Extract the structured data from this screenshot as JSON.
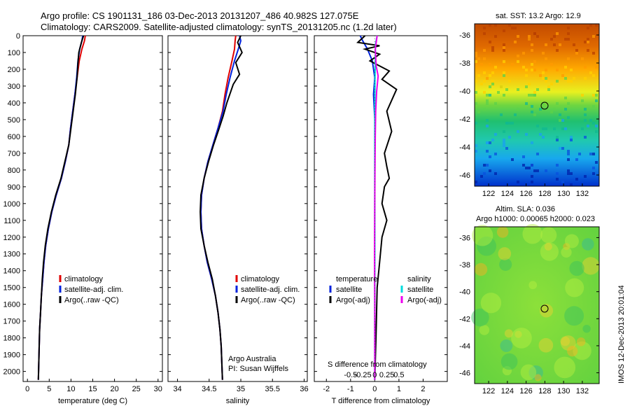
{
  "header": {
    "title_line1": "Argo profile: CS 1901131_186 03-Dec-2013 20131207_486 40.982S 127.075E",
    "title_line2": "Climatology: CARS2009. Satellite-adjusted climatology: synTS_20131205.nc (1.2d later)"
  },
  "colors": {
    "climatology": "#e00000",
    "satellite": "#0022dd",
    "argo": "#000000",
    "sal_satellite": "#00dddd",
    "sal_argo": "#ee00ee"
  },
  "legend_main": {
    "climatology": "climatology",
    "satellite": "satellite-adj. clim.",
    "argo": "Argo(..raw -QC)"
  },
  "legend_diff": {
    "temperature_head": "temperature",
    "salinity_head": "salinity",
    "satellite": "satellite",
    "argo": "Argo(-adj)"
  },
  "credits": {
    "line1": "Argo Australia",
    "line2": "PI: Susan Wijffels"
  },
  "diff_axis": {
    "s_label": "S difference from climatology",
    "s_ticks": [
      "-0.5",
      "-0.25",
      "0",
      "0.25",
      "0.5"
    ]
  },
  "maps": {
    "sst_title": "sat. SST: 13.2  Argo: 12.9",
    "sla_title_line1": "Altim. SLA: 0.036",
    "sla_title_line2": "Argo h1000: 0.00065 h2000: 0.023",
    "x_ticks": [
      "122",
      "124",
      "126",
      "128",
      "130",
      "132"
    ],
    "y_ticks": [
      "-36",
      "-38",
      "-40",
      "-42",
      "-44",
      "-46"
    ],
    "argo_position": {
      "lon": 127.075,
      "lat": -40.982
    },
    "side_label": "IMOS 12-Dec-2013 20:01:04"
  },
  "chart_data": [
    {
      "type": "line",
      "name": "temperature",
      "xlabel": "temperature (deg C)",
      "ylabel": "",
      "xlim": [
        -1,
        31
      ],
      "ylim": [
        2060,
        0
      ],
      "xticks": [
        0,
        5,
        10,
        15,
        20,
        25,
        30
      ],
      "yticks": [
        0,
        100,
        200,
        300,
        400,
        500,
        600,
        700,
        800,
        900,
        1000,
        1100,
        1200,
        1300,
        1400,
        1500,
        1600,
        1700,
        1800,
        1900,
        2000
      ],
      "series": [
        {
          "name": "climatology",
          "color": "#e00000",
          "x": [
            13.3,
            13.1,
            12.5,
            11.9,
            11.4,
            10.9,
            10.4,
            9.9,
            9.5,
            8.7,
            7.8,
            6.6,
            5.6,
            4.8,
            4.2,
            3.8,
            3.5,
            3.2,
            3.0,
            2.8,
            2.7,
            2.6,
            2.5
          ],
          "y": [
            0,
            30,
            80,
            150,
            250,
            350,
            450,
            550,
            650,
            750,
            850,
            950,
            1050,
            1150,
            1250,
            1350,
            1450,
            1550,
            1650,
            1750,
            1850,
            1950,
            2050
          ]
        },
        {
          "name": "satellite-adj. clim.",
          "color": "#0022dd",
          "x": [
            12.7,
            12.5,
            12.0,
            11.6,
            11.3,
            10.9,
            10.4,
            9.9,
            9.5,
            8.7,
            7.8,
            6.6,
            5.6,
            4.8,
            4.2,
            3.8,
            3.5,
            3.2,
            3.0,
            2.8,
            2.7,
            2.6,
            2.5
          ],
          "y": [
            0,
            30,
            80,
            150,
            250,
            350,
            450,
            550,
            650,
            750,
            850,
            950,
            1050,
            1150,
            1250,
            1350,
            1450,
            1550,
            1650,
            1750,
            1850,
            1950,
            2050
          ]
        },
        {
          "name": "Argo(..raw -QC)",
          "color": "#000000",
          "x": [
            12.9,
            12.4,
            11.8,
            11.6,
            11.4,
            11.0,
            10.5,
            10.0,
            9.5,
            8.6,
            7.7,
            6.5,
            5.5,
            4.7,
            4.1,
            3.7,
            3.4,
            3.2,
            3.0,
            2.8,
            2.7,
            2.6,
            2.5
          ],
          "y": [
            0,
            40,
            100,
            160,
            250,
            350,
            450,
            550,
            650,
            750,
            850,
            950,
            1050,
            1150,
            1250,
            1350,
            1450,
            1550,
            1650,
            1750,
            1850,
            1950,
            2050
          ]
        }
      ]
    },
    {
      "type": "line",
      "name": "salinity",
      "xlabel": "salinity",
      "ylabel": "",
      "xlim": [
        33.85,
        36.05
      ],
      "ylim": [
        2060,
        0
      ],
      "xticks": [
        34,
        34.5,
        35,
        35.5,
        36
      ],
      "series": [
        {
          "name": "climatology",
          "color": "#e00000",
          "x": [
            34.92,
            34.91,
            34.9,
            34.86,
            34.8,
            34.75,
            34.71,
            34.64,
            34.56,
            34.48,
            34.42,
            34.38,
            34.37,
            34.38,
            34.42,
            34.47,
            34.54,
            34.6,
            34.64,
            34.67,
            34.69,
            34.7,
            34.71
          ],
          "y": [
            0,
            30,
            80,
            150,
            250,
            350,
            450,
            550,
            650,
            750,
            850,
            950,
            1050,
            1150,
            1250,
            1350,
            1450,
            1550,
            1650,
            1750,
            1850,
            1950,
            2050
          ]
        },
        {
          "name": "satellite-adj. clim.",
          "color": "#0022dd",
          "x": [
            34.98,
            35.0,
            34.96,
            34.9,
            34.83,
            34.77,
            34.72,
            34.64,
            34.56,
            34.48,
            34.42,
            34.38,
            34.37,
            34.38,
            34.42,
            34.47,
            34.54,
            34.6,
            34.64,
            34.67,
            34.69,
            34.7,
            34.71
          ],
          "y": [
            0,
            30,
            80,
            150,
            250,
            350,
            450,
            550,
            650,
            750,
            850,
            950,
            1050,
            1150,
            1250,
            1350,
            1450,
            1550,
            1650,
            1750,
            1850,
            1950,
            2050
          ]
        },
        {
          "name": "Argo(..raw -QC)",
          "color": "#000000",
          "x": [
            35.0,
            34.95,
            35.02,
            34.92,
            34.98,
            34.88,
            34.78,
            34.72,
            34.65,
            34.57,
            34.49,
            34.42,
            34.37,
            34.36,
            34.37,
            34.42,
            34.48,
            34.55,
            34.6,
            34.64,
            34.67,
            34.69,
            34.7,
            34.71
          ],
          "y": [
            0,
            40,
            100,
            160,
            230,
            290,
            400,
            480,
            560,
            650,
            750,
            850,
            950,
            1050,
            1150,
            1250,
            1350,
            1450,
            1550,
            1650,
            1750,
            1850,
            1950,
            2050
          ]
        }
      ]
    },
    {
      "type": "line",
      "name": "difference from climatology",
      "xlabel": "T difference from climatology",
      "ylabel": "",
      "xlim": [
        -2.5,
        3.0
      ],
      "ylim": [
        2060,
        0
      ],
      "xticks": [
        -2,
        -1,
        0,
        1,
        2
      ],
      "series": [
        {
          "name": "temperature satellite",
          "color": "#0022dd",
          "x": [
            -0.6,
            -0.5,
            -0.3,
            -0.1,
            0.0,
            -0.05,
            0.0,
            0.0,
            0.0,
            0.0,
            0.0,
            0.0,
            0.0,
            0.0,
            0.0,
            0.0
          ],
          "y": [
            0,
            30,
            80,
            150,
            250,
            350,
            500,
            650,
            800,
            950,
            1100,
            1250,
            1400,
            1550,
            1800,
            2050
          ]
        },
        {
          "name": "temperature Argo(-adj)",
          "color": "#000000",
          "x": [
            -0.4,
            -0.7,
            0.2,
            -0.4,
            0.2,
            -0.2,
            0.6,
            0.3,
            0.9,
            0.5,
            0.7,
            0.4,
            0.5,
            0.6,
            0.4,
            0.3,
            0.5,
            0.3,
            0.2,
            0.1,
            0.05,
            0.0
          ],
          "y": [
            0,
            40,
            60,
            80,
            110,
            150,
            210,
            260,
            320,
            450,
            570,
            700,
            780,
            850,
            900,
            1000,
            1100,
            1200,
            1350,
            1500,
            1800,
            2050
          ]
        },
        {
          "name": "salinity satellite",
          "color": "#00dddd",
          "x": [
            0.1,
            0.03,
            0.02,
            0.01,
            0.0,
            0.0,
            0.0,
            0.0,
            0.0,
            0.0,
            0.0,
            0.0
          ],
          "y": [
            0,
            50,
            150,
            300,
            450,
            600,
            800,
            1000,
            1200,
            1500,
            1800,
            2050
          ]
        },
        {
          "name": "salinity Argo(-adj)",
          "color": "#ee00ee",
          "x": [
            0.1,
            0.02,
            0.06,
            0.14,
            0.08,
            0.04,
            0.02,
            0.01,
            0.0,
            -0.01,
            0.0,
            0.0
          ],
          "y": [
            0,
            80,
            180,
            240,
            330,
            450,
            600,
            800,
            1000,
            1300,
            1600,
            2050
          ]
        }
      ]
    },
    {
      "type": "heatmap",
      "name": "satellite SST map",
      "xlim": [
        120.5,
        133.8
      ],
      "ylim": [
        -46.8,
        -35.2
      ],
      "xticks": [
        122,
        124,
        126,
        128,
        130,
        132
      ],
      "yticks": [
        -36,
        -38,
        -40,
        -42,
        -44,
        -46
      ],
      "colormap": "jet",
      "marker": {
        "lon": 127.075,
        "lat": -40.982
      }
    },
    {
      "type": "heatmap",
      "name": "altimeter SLA map",
      "xlim": [
        120.5,
        133.8
      ],
      "ylim": [
        -46.8,
        -35.2
      ],
      "xticks": [
        122,
        124,
        126,
        128,
        130,
        132
      ],
      "yticks": [
        -36,
        -38,
        -40,
        -42,
        -44,
        -46
      ],
      "colormap": "jet",
      "marker": {
        "lon": 127.075,
        "lat": -40.982
      }
    }
  ]
}
